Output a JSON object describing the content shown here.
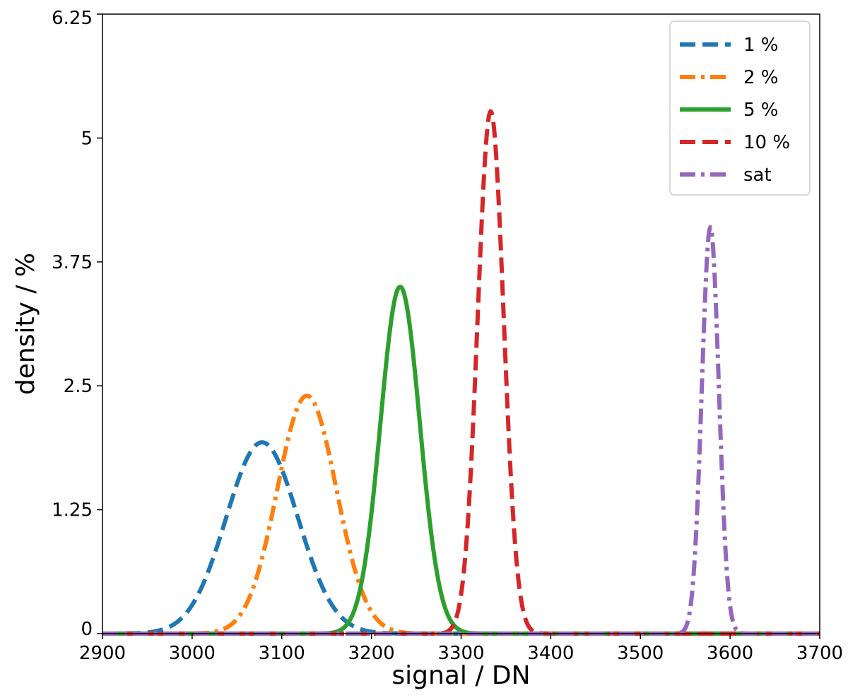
{
  "chart_data": {
    "type": "line",
    "title": "",
    "xlabel": "signal / DN",
    "ylabel": "density / %",
    "xlim": [
      2900,
      3700
    ],
    "ylim": [
      0,
      6.25
    ],
    "xticks": [
      2900,
      3000,
      3100,
      3200,
      3300,
      3400,
      3500,
      3600,
      3700
    ],
    "yticks": [
      0,
      1.25,
      2.5,
      3.75,
      5,
      6.25
    ],
    "xtick_labels": [
      "2900",
      "3000",
      "3100",
      "3200",
      "3300",
      "3400",
      "3500",
      "3600",
      "3700"
    ],
    "ytick_labels": [
      "0",
      "1.25",
      "2.5",
      "3.75",
      "5",
      "6.25"
    ],
    "grid": false,
    "legend_position": "top-right",
    "series": [
      {
        "name": "1  %",
        "color": "#1f77b4",
        "dash": "dashed",
        "peak_x": 3078,
        "peak_y": 1.93,
        "sigma": 40
      },
      {
        "name": "2  %",
        "color": "#ff7f0e",
        "dash": "dashdot",
        "peak_x": 3128,
        "peak_y": 2.4,
        "sigma": 33
      },
      {
        "name": "5  %",
        "color": "#2ca02c",
        "dash": "solid",
        "peak_x": 3232,
        "peak_y": 3.5,
        "sigma": 22
      },
      {
        "name": "10 %",
        "color": "#d62728",
        "dash": "dashed",
        "peak_x": 3333,
        "peak_y": 5.27,
        "sigma": 14.5
      },
      {
        "name": "sat",
        "color": "#9467bd",
        "dash": "dashdot",
        "peak_x": 3578,
        "peak_y": 4.1,
        "sigma": 9.5
      }
    ]
  }
}
